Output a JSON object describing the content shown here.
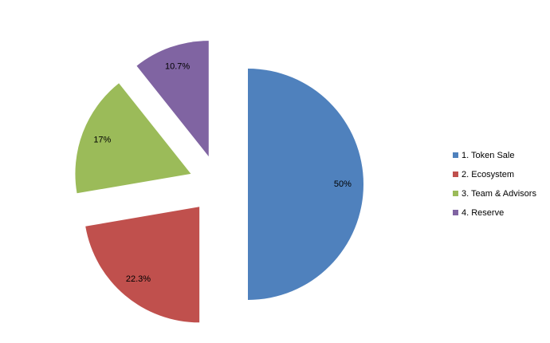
{
  "chart_data": {
    "type": "pie",
    "categories": [
      "1. Token Sale",
      "2. Ecosystem",
      "3. Team & Advisors",
      "4. Reserve"
    ],
    "values": [
      50,
      22.3,
      17,
      10.7
    ],
    "value_labels": [
      "50%",
      "22.3%",
      "17%",
      "10.7%"
    ],
    "colors": [
      "#4f81bd",
      "#c0504d",
      "#9bbb59",
      "#8064a2"
    ],
    "legend": "right"
  }
}
